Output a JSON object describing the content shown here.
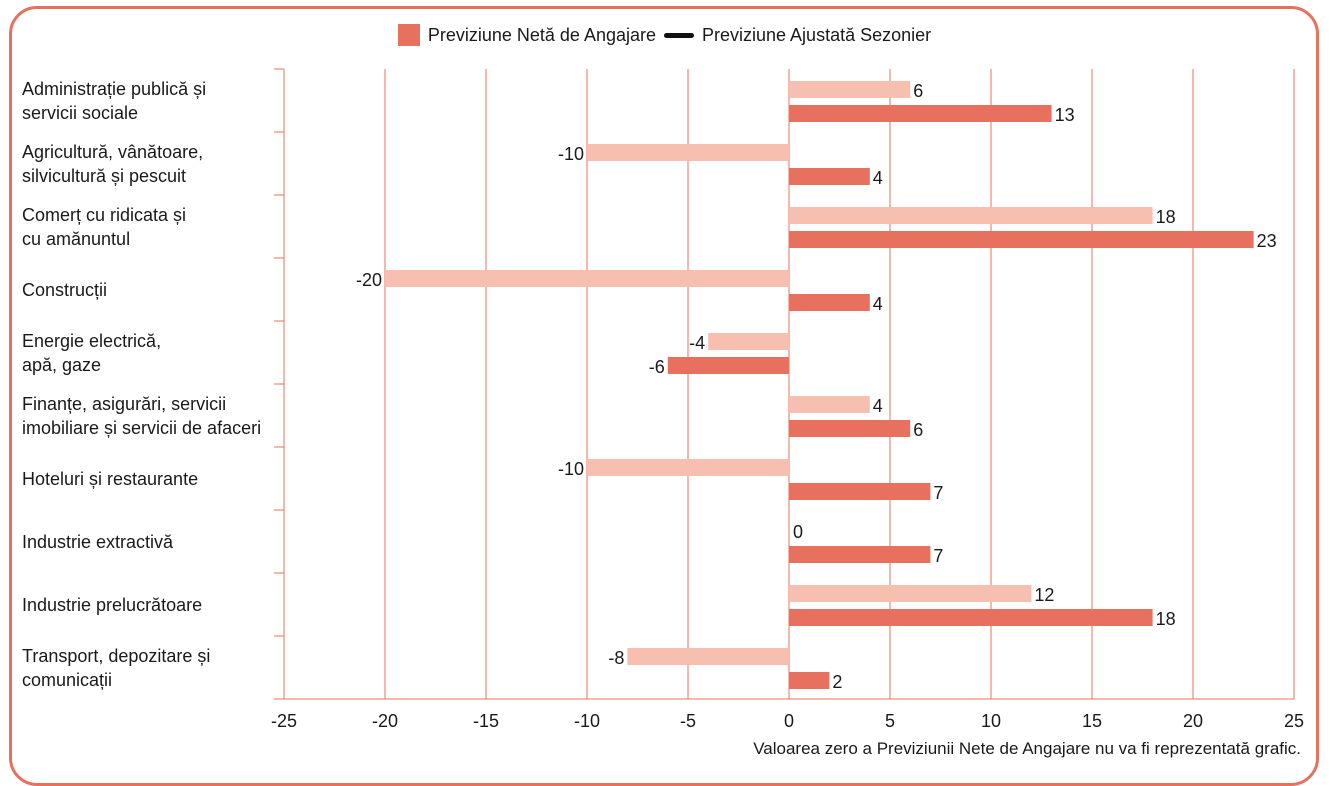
{
  "legend": {
    "net_label": "Previziune Netă de Angajare",
    "adjusted_label": "Previziune Ajustată Sezonier"
  },
  "colors": {
    "net": "#e8705f",
    "adjusted": "#f7bfb0",
    "grid": "#e8705f",
    "line_legend": "#111111",
    "frame": "#e8705f"
  },
  "footnote": "Valoarea zero a Previziunii Nete de Angajare nu va fi reprezentată grafic.",
  "chart_data": {
    "type": "bar",
    "orientation": "horizontal",
    "categories": [
      "Administrație publică și\nservicii sociale",
      "Agricultură, vânătoare,\nsilvicultură și pescuit",
      "Comerț cu ridicata și\ncu amănuntul",
      "Construcții",
      "Energie electrică,\napă, gaze",
      "Finanțe, asigurări, servicii\nimobiliare și servicii de afaceri",
      "Hoteluri și restaurante",
      "Industrie extractivă",
      "Industrie prelucrătoare",
      "Transport, depozitare și\ncomunicații"
    ],
    "series": [
      {
        "name": "Previziune Ajustată Sezonier",
        "values": [
          6,
          -10,
          18,
          -20,
          -4,
          4,
          -10,
          0,
          12,
          -8
        ]
      },
      {
        "name": "Previziune Netă de Angajare",
        "values": [
          13,
          4,
          23,
          4,
          -6,
          6,
          7,
          7,
          18,
          2
        ]
      }
    ],
    "xlim": [
      -25,
      25
    ],
    "xticks": [
      -25,
      -20,
      -15,
      -10,
      -5,
      0,
      5,
      10,
      15,
      20,
      25
    ],
    "grid": "vertical",
    "legend_position": "top-center"
  }
}
